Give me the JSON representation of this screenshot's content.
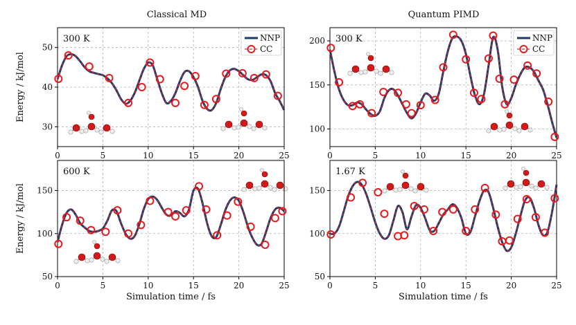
{
  "column_titles": [
    "Classical MD",
    "Quantum PIMD"
  ],
  "legend": {
    "nnp": "NNP",
    "cc": "CC"
  },
  "colors": {
    "nnp_line": "#1a3a6b",
    "cc_dash": "#d62728",
    "cc_marker": "#e8191c",
    "grid": "#b0b0b0"
  },
  "chart_data": [
    {
      "type": "line",
      "panel": "top-left",
      "annotation": "300 K",
      "xlabel": "",
      "ylabel": "Energy / kJ/mol",
      "xlim": [
        0,
        25
      ],
      "ylim": [
        25,
        55
      ],
      "xticks": [
        0,
        5,
        10,
        15,
        20,
        25
      ],
      "yticks": [
        30,
        40,
        50
      ],
      "legend": "top-right",
      "series": [
        {
          "name": "NNP",
          "x": [
            0,
            0.5,
            1,
            1.5,
            2,
            2.5,
            3,
            3.5,
            4,
            4.5,
            5,
            5.5,
            6,
            6.5,
            7,
            7.5,
            8,
            8.5,
            9,
            9.5,
            10,
            10.5,
            11,
            11.5,
            12,
            12.5,
            13,
            13.5,
            14,
            14.5,
            15,
            15.5,
            16,
            16.5,
            17,
            17.5,
            18,
            18.5,
            19,
            19.5,
            20,
            20.5,
            21,
            21.5,
            22,
            22.5,
            23,
            23.5,
            24,
            24.5,
            25
          ],
          "values": [
            42,
            45.5,
            47.8,
            48.3,
            47.8,
            46.5,
            45.0,
            44.0,
            43.6,
            43.3,
            43.0,
            42.2,
            41.0,
            39.2,
            37.0,
            35.8,
            36.5,
            38.5,
            41.5,
            44.5,
            46.2,
            45.5,
            42.0,
            38.5,
            36.0,
            36.5,
            38.5,
            41.5,
            43.8,
            44.0,
            42.5,
            40.0,
            36.5,
            34.5,
            34.2,
            36.0,
            39.5,
            42.5,
            44.2,
            44.6,
            44.0,
            43.0,
            42.0,
            41.8,
            42.5,
            43.2,
            43.0,
            41.5,
            38.5,
            36.5,
            34.2
          ]
        },
        {
          "name": "CC",
          "x": [
            0.1,
            1.2,
            3.5,
            5.7,
            7.8,
            9.3,
            10.2,
            11.3,
            13.0,
            14.0,
            15.2,
            16.2,
            17.5,
            18.6,
            20.4,
            21.7,
            23.0,
            24.3
          ],
          "values": [
            42.1,
            48.0,
            45.2,
            42.3,
            36.0,
            40.0,
            46.2,
            42.0,
            36.0,
            40.3,
            42.8,
            35.5,
            37.0,
            43.4,
            43.5,
            42.3,
            43.2,
            37.8
          ]
        }
      ]
    },
    {
      "type": "line",
      "panel": "top-right",
      "annotation": "300 K",
      "xlabel": "",
      "ylabel": "",
      "xlim": [
        0,
        25
      ],
      "ylim": [
        80,
        215
      ],
      "xticks": [
        0,
        5,
        10,
        15,
        20,
        25
      ],
      "yticks": [
        100,
        150,
        200
      ],
      "legend": "top-right",
      "series": [
        {
          "name": "NNP",
          "x": [
            0,
            0.5,
            1,
            1.5,
            2,
            2.5,
            3,
            3.5,
            4,
            4.5,
            5,
            5.5,
            6,
            6.5,
            7,
            7.5,
            8,
            8.5,
            9,
            9.5,
            10,
            10.5,
            11,
            11.5,
            12,
            12.5,
            13,
            13.5,
            14,
            14.5,
            15,
            15.5,
            16,
            16.5,
            17,
            17.5,
            18,
            18.5,
            19,
            19.5,
            20,
            20.5,
            21,
            21.5,
            22,
            22.5,
            23,
            23.5,
            24,
            24.5,
            25
          ],
          "values": [
            190,
            165,
            145,
            133,
            127,
            127,
            130,
            128,
            122,
            117,
            115,
            120,
            135,
            144,
            145,
            138,
            128,
            118,
            112,
            118,
            130,
            140,
            138,
            132,
            140,
            165,
            188,
            203,
            205,
            200,
            185,
            160,
            138,
            128,
            140,
            172,
            204,
            190,
            148,
            128,
            135,
            150,
            162,
            170,
            170,
            165,
            155,
            145,
            128,
            108,
            90
          ]
        },
        {
          "name": "CC",
          "x": [
            0.1,
            1.0,
            2.5,
            3.3,
            4.6,
            5.9,
            7.5,
            8.4,
            9.0,
            10.0,
            11.6,
            12.5,
            13.6,
            15.0,
            15.9,
            16.7,
            17.5,
            18.0,
            18.7,
            19.3,
            20.3,
            21.8,
            22.8,
            24.1,
            24.8
          ],
          "values": [
            192,
            153,
            126,
            128,
            118,
            142,
            141,
            128,
            118,
            127,
            133,
            170,
            207,
            179,
            141,
            134,
            180,
            206,
            157,
            128,
            156,
            172,
            163,
            131,
            91
          ]
        }
      ]
    },
    {
      "type": "line",
      "panel": "bottom-left",
      "annotation": "600 K",
      "xlabel": "Simulation time / fs",
      "ylabel": "Energy / kJ/mol",
      "xlim": [
        0,
        25
      ],
      "ylim": [
        50,
        185
      ],
      "xticks": [
        0,
        5,
        10,
        15,
        20,
        25
      ],
      "yticks": [
        50,
        100,
        150
      ],
      "series": [
        {
          "name": "NNP",
          "x": [
            0,
            0.5,
            1,
            1.5,
            2,
            2.5,
            3,
            3.5,
            4,
            4.5,
            5,
            5.5,
            6,
            6.5,
            7,
            7.5,
            8,
            8.5,
            9,
            9.5,
            10,
            10.5,
            11,
            11.5,
            12,
            12.5,
            13,
            13.5,
            14,
            14.5,
            15,
            15.5,
            16,
            16.5,
            17,
            17.5,
            18,
            18.5,
            19,
            19.5,
            20,
            20.5,
            21,
            21.5,
            22,
            22.5,
            23,
            23.5,
            24,
            24.5,
            25
          ],
          "values": [
            90,
            110,
            124,
            128,
            122,
            112,
            107,
            103,
            102,
            103,
            106,
            115,
            127,
            126,
            112,
            100,
            94,
            97,
            110,
            128,
            140,
            143,
            139,
            130,
            122,
            121,
            126,
            124,
            120,
            128,
            150,
            152,
            135,
            112,
            97,
            96,
            110,
            127,
            138,
            142,
            138,
            125,
            108,
            95,
            87,
            88,
            102,
            118,
            128,
            130,
            126
          ]
        },
        {
          "name": "CC",
          "x": [
            0.1,
            1.0,
            2.5,
            3.7,
            5.3,
            6.6,
            7.8,
            9.2,
            10.2,
            12.2,
            13.0,
            14.2,
            15.6,
            16.4,
            17.6,
            18.7,
            19.9,
            21.3,
            22.9,
            24.0,
            24.8
          ],
          "values": [
            88,
            119,
            115,
            104,
            102,
            127,
            100,
            110,
            138,
            125,
            120,
            127,
            155,
            128,
            98,
            121,
            137,
            108,
            87,
            118,
            126
          ]
        }
      ]
    },
    {
      "type": "line",
      "panel": "bottom-right",
      "annotation": "1.67 K",
      "xlabel": "Simulation time / fs",
      "ylabel": "",
      "xlim": [
        0,
        25
      ],
      "ylim": [
        50,
        185
      ],
      "xticks": [
        0,
        5,
        10,
        15,
        20,
        25
      ],
      "yticks": [
        50,
        100,
        150
      ],
      "series": [
        {
          "name": "NNP",
          "x": [
            0,
            0.5,
            1,
            1.5,
            2,
            2.5,
            3,
            3.5,
            4,
            4.5,
            5,
            5.5,
            6,
            6.5,
            7,
            7.5,
            8,
            8.5,
            9,
            9.5,
            10,
            10.5,
            11,
            11.5,
            12,
            12.5,
            13,
            13.5,
            14,
            14.5,
            15,
            15.5,
            16,
            16.5,
            17,
            17.5,
            18,
            18.5,
            19,
            19.5,
            20,
            20.5,
            21,
            21.5,
            22,
            22.5,
            23,
            23.5,
            24,
            24.5,
            25
          ],
          "values": [
            100,
            100,
            108,
            125,
            143,
            155,
            160,
            157,
            146,
            130,
            113,
            100,
            94,
            98,
            115,
            132,
            125,
            105,
            120,
            133,
            130,
            118,
            104,
            103,
            112,
            122,
            128,
            134,
            130,
            118,
            100,
            102,
            120,
            138,
            150,
            148,
            130,
            108,
            90,
            80,
            84,
            100,
            120,
            138,
            142,
            130,
            110,
            98,
            102,
            125,
            157
          ]
        },
        {
          "name": "CC",
          "x": [
            0.1,
            2.3,
            3.6,
            5.3,
            6.0,
            7.5,
            8.2,
            9.3,
            10.4,
            11.4,
            12.4,
            13.6,
            15.0,
            16.0,
            17.1,
            18.3,
            19.0,
            19.8,
            20.7,
            21.7,
            22.7,
            23.7,
            24.8
          ],
          "values": [
            99,
            142,
            159,
            148,
            123,
            97,
            98,
            132,
            128,
            103,
            125,
            128,
            103,
            128,
            153,
            122,
            91,
            92,
            117,
            140,
            119,
            101,
            141
          ]
        }
      ]
    }
  ]
}
